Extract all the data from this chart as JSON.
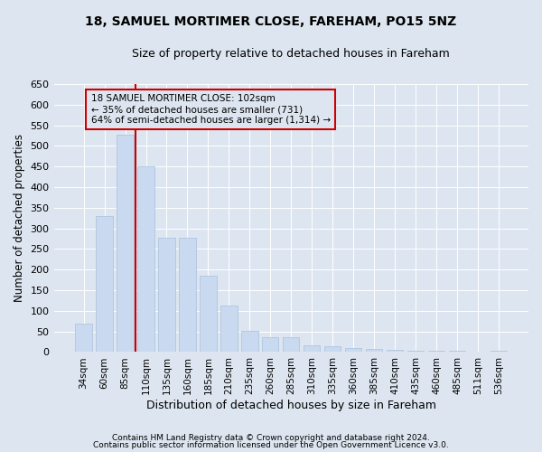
{
  "title1": "18, SAMUEL MORTIMER CLOSE, FAREHAM, PO15 5NZ",
  "title2": "Size of property relative to detached houses in Fareham",
  "xlabel": "Distribution of detached houses by size in Fareham",
  "ylabel": "Number of detached properties",
  "categories": [
    "34sqm",
    "60sqm",
    "85sqm",
    "110sqm",
    "135sqm",
    "160sqm",
    "185sqm",
    "210sqm",
    "235sqm",
    "260sqm",
    "285sqm",
    "310sqm",
    "335sqm",
    "360sqm",
    "385sqm",
    "410sqm",
    "435sqm",
    "460sqm",
    "485sqm",
    "511sqm",
    "536sqm"
  ],
  "values": [
    70,
    330,
    527,
    450,
    277,
    277,
    185,
    113,
    52,
    35,
    35,
    17,
    15,
    10,
    7,
    5,
    4,
    4,
    3,
    1,
    4
  ],
  "bar_color": "#c9d9f0",
  "bar_edge_color": "#a8c0dc",
  "vline_color": "#cc0000",
  "annotation_text": "18 SAMUEL MORTIMER CLOSE: 102sqm\n← 35% of detached houses are smaller (731)\n64% of semi-detached houses are larger (1,314) →",
  "annotation_box_color": "#cc0000",
  "ylim": [
    0,
    650
  ],
  "yticks": [
    0,
    50,
    100,
    150,
    200,
    250,
    300,
    350,
    400,
    450,
    500,
    550,
    600,
    650
  ],
  "footnote1": "Contains HM Land Registry data © Crown copyright and database right 2024.",
  "footnote2": "Contains public sector information licensed under the Open Government Licence v3.0.",
  "bg_color": "#dde6f0",
  "grid_color": "#ffffff"
}
